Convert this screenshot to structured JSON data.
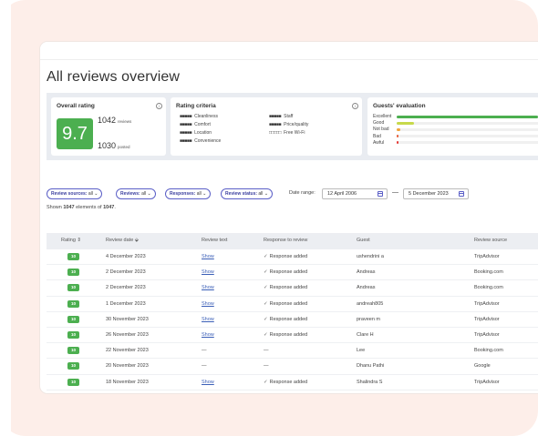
{
  "page": {
    "title": "All reviews overview"
  },
  "overall": {
    "title": "Overall rating",
    "score": "9.7",
    "reviews_count": "1042",
    "reviews_label": "reviews",
    "posted_count": "1030",
    "posted_label": "posted",
    "score_color": "#4caf50"
  },
  "criteria": {
    "title": "Rating criteria",
    "items": [
      {
        "marks": "■■■■■",
        "label": "Cleanliness"
      },
      {
        "marks": "■■■■■",
        "label": "Comfort"
      },
      {
        "marks": "■■■■■",
        "label": "Location"
      },
      {
        "marks": "■■■■■",
        "label": "Convenience"
      },
      {
        "marks": "■■■■■",
        "label": "Staff"
      },
      {
        "marks": "■■■■■",
        "label": "Price/quality"
      },
      {
        "marks": "□□□□□",
        "label": "Free Wi-Fi"
      }
    ]
  },
  "evaluation": {
    "title": "Guests' evaluation",
    "rows": [
      {
        "label": "Excellent",
        "fraction": 0.97,
        "color": "#4caf50"
      },
      {
        "label": "Good",
        "fraction": 0.12,
        "color": "#c7d94a"
      },
      {
        "label": "Not bad",
        "fraction": 0.025,
        "color": "#f2a33a"
      },
      {
        "label": "Bad",
        "fraction": 0.008,
        "color": "#e8603c"
      },
      {
        "label": "Awful",
        "fraction": 0.008,
        "color": "#e53935"
      }
    ]
  },
  "filters": {
    "chips": [
      {
        "name": "Review sources:",
        "value": "all"
      },
      {
        "name": "Reviews:",
        "value": "all"
      },
      {
        "name": "Responses:",
        "value": "all"
      },
      {
        "name": "Review status:",
        "value": "all"
      }
    ],
    "chevron": "⌄",
    "date_range_label": "Date range:",
    "date_from": "12 April 2006",
    "date_to": "5 December 2023",
    "date_separator": "—"
  },
  "shown": {
    "prefix": "Shown",
    "count": "1047",
    "middle": "elements of",
    "total": "1047"
  },
  "table": {
    "headers": {
      "rating": "Rating ⇕",
      "date": "Review date ⬙",
      "text": "Review text",
      "response": "Response to review",
      "guest": "Guest",
      "source": "Review source"
    },
    "rows": [
      {
        "rating": "10",
        "date": "4 December 2023",
        "text": "Show",
        "response": "Response added",
        "guest": "ushendrini a",
        "source": "TripAdvisor"
      },
      {
        "rating": "10",
        "date": "2 December 2023",
        "text": "Show",
        "response": "Response added",
        "guest": "Andreas",
        "source": "Booking.com"
      },
      {
        "rating": "10",
        "date": "2 December 2023",
        "text": "Show",
        "response": "Response added",
        "guest": "Andreas",
        "source": "Booking.com"
      },
      {
        "rating": "10",
        "date": "1 December 2023",
        "text": "Show",
        "response": "Response added",
        "guest": "andreah805",
        "source": "TripAdvisor"
      },
      {
        "rating": "10",
        "date": "30 November 2023",
        "text": "Show",
        "response": "Response added",
        "guest": "praveen m",
        "source": "TripAdvisor"
      },
      {
        "rating": "10",
        "date": "26 November 2023",
        "text": "Show",
        "response": "Response added",
        "guest": "Clare H",
        "source": "TripAdvisor"
      },
      {
        "rating": "10",
        "date": "22 November 2023",
        "text": "—",
        "response": "—",
        "guest": "Lee",
        "source": "Booking.com"
      },
      {
        "rating": "10",
        "date": "20 November 2023",
        "text": "—",
        "response": "—",
        "guest": "Dhanu Pathi",
        "source": "Google"
      },
      {
        "rating": "10",
        "date": "18 November 2023",
        "text": "Show",
        "response": "Response added",
        "guest": "Shalindra S",
        "source": "TripAdvisor"
      }
    ],
    "check_mark": "✓",
    "rating_color": "#4caf50"
  }
}
